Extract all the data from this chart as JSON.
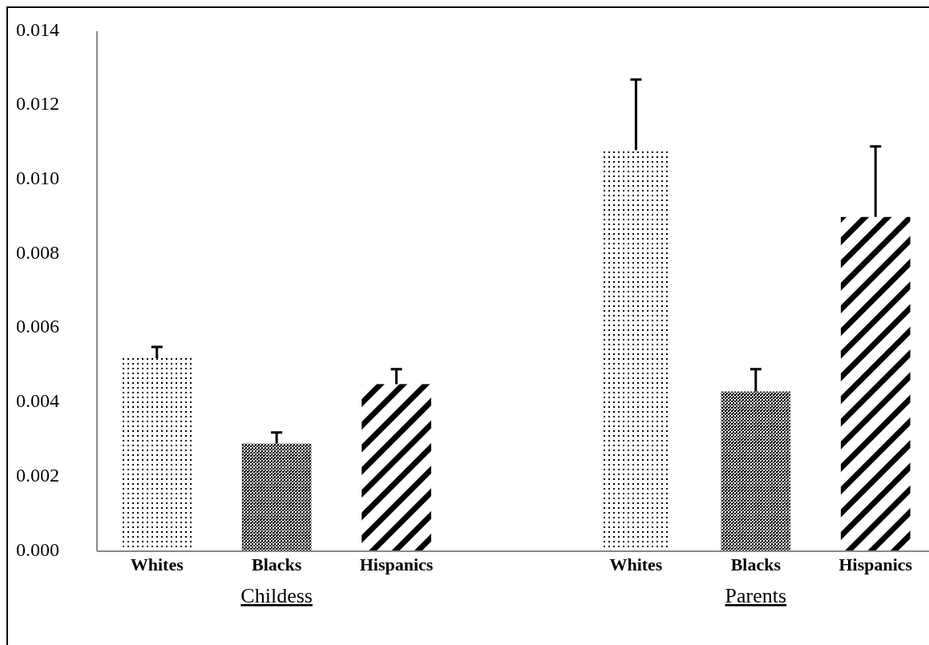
{
  "chart_data": {
    "type": "bar",
    "categories": [
      "Whites",
      "Blacks",
      "Hispanics",
      null,
      "Whites",
      "Blacks",
      "Hispanics"
    ],
    "values": [
      0.0052,
      0.0029,
      0.0045,
      null,
      0.0108,
      0.0043,
      0.009
    ],
    "errors": [
      [
        0.0052,
        0.0055
      ],
      [
        0.0029,
        0.0032
      ],
      [
        0.0045,
        0.0049
      ],
      null,
      [
        0.0108,
        0.0127
      ],
      [
        0.0043,
        0.0049
      ],
      [
        0.009,
        0.0109
      ]
    ],
    "color": "#000000",
    "ylim": [
      0,
      0.014
    ],
    "yticks": [
      {
        "value": 0,
        "label": "0.000"
      },
      {
        "value": 0.002,
        "label": "0.002"
      },
      {
        "value": 0.004,
        "label": "0.004"
      },
      {
        "value": 0.006,
        "label": "0.006"
      },
      {
        "value": 0.008,
        "label": "0.008"
      },
      {
        "value": 0.01,
        "label": "0.010"
      },
      {
        "value": 0.012,
        "label": "0.012"
      },
      {
        "value": 0.014,
        "label": "0.014"
      }
    ],
    "annotations": [
      "Childess",
      "Parents"
    ],
    "grid": false
  }
}
